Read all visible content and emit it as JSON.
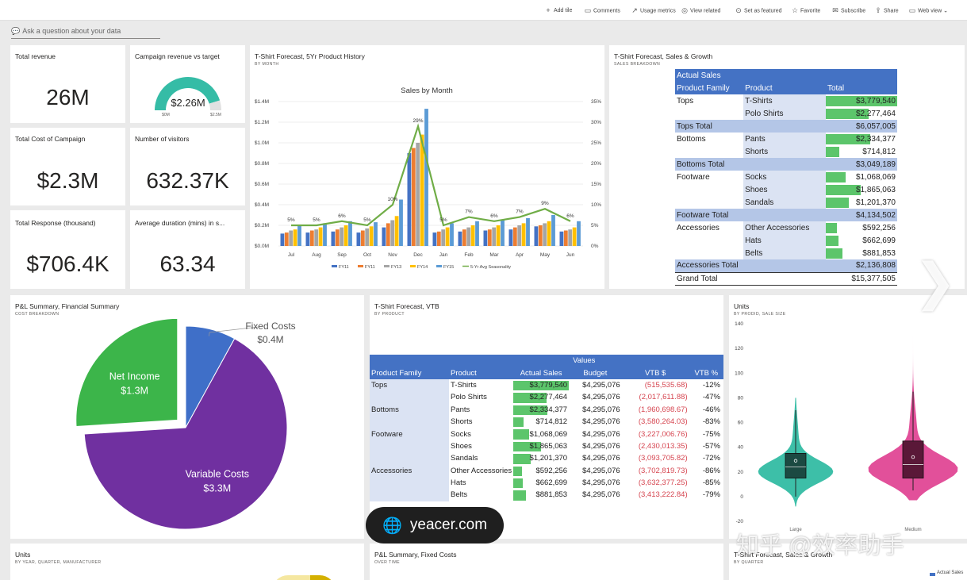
{
  "toolbar": {
    "items": [
      {
        "icon": "plus-icon",
        "glyph": "+",
        "label": "Add tile"
      },
      {
        "icon": "comment-icon",
        "glyph": "▭",
        "label": "Comments"
      },
      {
        "icon": "metrics-icon",
        "glyph": "↗",
        "label": "Usage metrics"
      },
      {
        "icon": "view-related-icon",
        "glyph": "◎",
        "label": "View related"
      },
      {
        "icon": "featured-icon",
        "glyph": "⊙",
        "label": "Set as featured"
      },
      {
        "icon": "star-icon",
        "glyph": "☆",
        "label": "Favorite"
      },
      {
        "icon": "mail-icon",
        "glyph": "✉",
        "label": "Subscribe"
      },
      {
        "icon": "share-icon",
        "glyph": "⇪",
        "label": "Share"
      },
      {
        "icon": "web-view-icon",
        "glyph": "▭",
        "label": "Web view ⌄"
      }
    ]
  },
  "qna": {
    "label": "Ask a question about your data"
  },
  "kpis": {
    "total_revenue": {
      "title": "Total revenue",
      "value": "26M"
    },
    "campaign_gauge": {
      "title": "Campaign revenue vs target",
      "value": "$2.26M",
      "min": "$0M",
      "max": "$2.5M",
      "fraction": 0.904
    },
    "total_cost": {
      "title": "Total Cost of Campaign",
      "value": "$2.3M"
    },
    "visitors": {
      "title": "Number of visitors",
      "value": "632.37K"
    },
    "response": {
      "title": "Total Response (thousand)",
      "value": "$706.4K"
    },
    "duration": {
      "title": "Average duration (mins) in s...",
      "value": "63.34"
    }
  },
  "forecast_tile": {
    "title": "T-Shirt Forecast, 5Yr Product History",
    "subtitle": "BY MONTH"
  },
  "sales_growth_tile": {
    "title": "T-Shirt Forecast, Sales & Growth",
    "subtitle": "SALES BREAKDOWN"
  },
  "pl_tile": {
    "title": "P&L Summary, Financial Summary",
    "subtitle": "COST BREAKDOWN"
  },
  "vtb_tile": {
    "title": "T-Shirt Forecast, VTB",
    "subtitle": "BY PRODUCT"
  },
  "units_tile": {
    "title": "Units",
    "subtitle": "BY PRODID, SALE SIZE"
  },
  "bottom_tiles": {
    "units": {
      "title": "Units",
      "subtitle": "BY YEAR, QUARTER, MANUFACTURER"
    },
    "fixed": {
      "title": "P&L Summary, Fixed Costs",
      "subtitle": "OVER TIME"
    },
    "growth": {
      "title": "T-Shirt Forecast, Sales & Growth",
      "subtitle": "BY QUARTER",
      "legend": "Actual Sales"
    }
  },
  "matrix": {
    "title": "Actual Sales",
    "headers": [
      "Product Family",
      "Product",
      "Total"
    ],
    "max": 3779540,
    "rows": [
      {
        "kind": "item",
        "family": "Tops",
        "product": "T-Shirts",
        "total": "$3,779,540",
        "v": 3779540
      },
      {
        "kind": "item",
        "family": "",
        "product": "Polo Shirts",
        "total": "$2,277,464",
        "v": 2277464
      },
      {
        "kind": "total",
        "family": "Tops Total",
        "total": "$6,057,005"
      },
      {
        "kind": "item",
        "family": "Bottoms",
        "product": "Pants",
        "total": "$2,334,377",
        "v": 2334377
      },
      {
        "kind": "item",
        "family": "",
        "product": "Shorts",
        "total": "$714,812",
        "v": 714812
      },
      {
        "kind": "total",
        "family": "Bottoms Total",
        "total": "$3,049,189"
      },
      {
        "kind": "item",
        "family": "Footware",
        "product": "Socks",
        "total": "$1,068,069",
        "v": 1068069
      },
      {
        "kind": "item",
        "family": "",
        "product": "Shoes",
        "total": "$1,865,063",
        "v": 1865063
      },
      {
        "kind": "item",
        "family": "",
        "product": "Sandals",
        "total": "$1,201,370",
        "v": 1201370
      },
      {
        "kind": "total",
        "family": "Footware Total",
        "total": "$4,134,502"
      },
      {
        "kind": "item",
        "family": "Accessories",
        "product": "Other Accessories",
        "total": "$592,256",
        "v": 592256
      },
      {
        "kind": "item",
        "family": "",
        "product": "Hats",
        "total": "$662,699",
        "v": 662699
      },
      {
        "kind": "item",
        "family": "",
        "product": "Belts",
        "total": "$881,853",
        "v": 881853
      },
      {
        "kind": "total",
        "family": "Accessories Total",
        "total": "$2,136,808"
      },
      {
        "kind": "grand",
        "family": "Grand Total",
        "total": "$15,377,505"
      }
    ]
  },
  "vtb": {
    "values_label": "Values",
    "headers": [
      "Product Family",
      "Product",
      "Actual Sales",
      "Budget",
      "VTB $",
      "VTB %"
    ],
    "max": 3779540,
    "rows": [
      {
        "family": "Tops",
        "product": "T-Shirts",
        "actual": "$3,779,540",
        "v": 3779540,
        "budget": "$4,295,076",
        "vtb": "(515,535.68)",
        "pct": "-12%"
      },
      {
        "family": "",
        "product": "Polo Shirts",
        "actual": "$2,277,464",
        "v": 2277464,
        "budget": "$4,295,076",
        "vtb": "(2,017,611.88)",
        "pct": "-47%"
      },
      {
        "family": "Bottoms",
        "product": "Pants",
        "actual": "$2,334,377",
        "v": 2334377,
        "budget": "$4,295,076",
        "vtb": "(1,960,698.67)",
        "pct": "-46%"
      },
      {
        "family": "",
        "product": "Shorts",
        "actual": "$714,812",
        "v": 714812,
        "budget": "$4,295,076",
        "vtb": "(3,580,264.03)",
        "pct": "-83%"
      },
      {
        "family": "Footware",
        "product": "Socks",
        "actual": "$1,068,069",
        "v": 1068069,
        "budget": "$4,295,076",
        "vtb": "(3,227,006.76)",
        "pct": "-75%"
      },
      {
        "family": "",
        "product": "Shoes",
        "actual": "$1,865,063",
        "v": 1865063,
        "budget": "$4,295,076",
        "vtb": "(2,430,013.35)",
        "pct": "-57%"
      },
      {
        "family": "",
        "product": "Sandals",
        "actual": "$1,201,370",
        "v": 1201370,
        "budget": "$4,295,076",
        "vtb": "(3,093,705.82)",
        "pct": "-72%"
      },
      {
        "family": "Accessories",
        "product": "Other Accessories",
        "actual": "$592,256",
        "v": 592256,
        "budget": "$4,295,076",
        "vtb": "(3,702,819.73)",
        "pct": "-86%"
      },
      {
        "family": "",
        "product": "Hats",
        "actual": "$662,699",
        "v": 662699,
        "budget": "$4,295,076",
        "vtb": "(3,632,377.25)",
        "pct": "-85%"
      },
      {
        "family": "",
        "product": "Belts",
        "actual": "$881,853",
        "v": 881853,
        "budget": "$4,295,076",
        "vtb": "(3,413,222.84)",
        "pct": "-79%"
      }
    ]
  },
  "chart_data": [
    {
      "type": "bar",
      "title": "Sales by Month",
      "categories": [
        "Jul",
        "Aug",
        "Sep",
        "Oct",
        "Nov",
        "Dec",
        "Jan",
        "Feb",
        "Mar",
        "Apr",
        "May",
        "Jun"
      ],
      "y_ticks": [
        "$0.0M",
        "$0.2M",
        "$0.4M",
        "$0.6M",
        "$0.8M",
        "$1.0M",
        "$1.2M",
        "$1.4M"
      ],
      "y2_ticks": [
        "0%",
        "5%",
        "10%",
        "15%",
        "20%",
        "25%",
        "30%",
        "35%"
      ],
      "ylim": [
        0,
        1.4
      ],
      "y2lim": [
        0,
        35
      ],
      "series": [
        {
          "name": "FY11",
          "color": "#4472c4",
          "values": [
            0.12,
            0.13,
            0.14,
            0.13,
            0.18,
            0.9,
            0.13,
            0.14,
            0.15,
            0.16,
            0.19,
            0.14
          ]
        },
        {
          "name": "FY11",
          "color": "#ed7d31",
          "values": [
            0.13,
            0.15,
            0.16,
            0.15,
            0.22,
            0.95,
            0.14,
            0.16,
            0.16,
            0.18,
            0.2,
            0.15
          ]
        },
        {
          "name": "FY13",
          "color": "#a5a5a5",
          "values": [
            0.15,
            0.16,
            0.18,
            0.17,
            0.25,
            1.0,
            0.16,
            0.18,
            0.18,
            0.2,
            0.22,
            0.16
          ]
        },
        {
          "name": "FY14",
          "color": "#ffc000",
          "values": [
            0.16,
            0.18,
            0.2,
            0.19,
            0.29,
            1.08,
            0.18,
            0.2,
            0.2,
            0.22,
            0.24,
            0.18
          ]
        },
        {
          "name": "FY15",
          "color": "#5b9bd5",
          "values": [
            0.2,
            0.22,
            0.24,
            0.23,
            0.45,
            1.33,
            0.22,
            0.24,
            0.25,
            0.27,
            0.3,
            0.24
          ]
        }
      ],
      "line": {
        "name": "5-Yr Avg Seasonality",
        "color": "#70ad47",
        "values": [
          5,
          5,
          6,
          5,
          10,
          29,
          5,
          7,
          6,
          7,
          9,
          6
        ],
        "labels": [
          "5%",
          "5%",
          "6%",
          "5%",
          "10%",
          "29%",
          "5%",
          "7%",
          "6%",
          "7%",
          "9%",
          "6%"
        ]
      }
    },
    {
      "type": "pie",
      "slices": [
        {
          "label": "Fixed Costs",
          "value_label": "$0.4M",
          "value": 0.4,
          "color": "#3f6fc8"
        },
        {
          "label": "Variable Costs",
          "value_label": "$3.3M",
          "value": 3.3,
          "color": "#7030a0"
        },
        {
          "label": "Net Income",
          "value_label": "$1.3M",
          "value": 1.3,
          "color": "#3cb54a"
        }
      ]
    },
    {
      "type": "violin",
      "y_ticks": [
        "-20",
        "0",
        "20",
        "40",
        "60",
        "80",
        "100",
        "120",
        "140"
      ],
      "ylim": [
        -20,
        140
      ],
      "categories": [
        "Large",
        "Medium"
      ],
      "series": [
        {
          "name": "Large",
          "color": "#3dbfa8",
          "box_color": "#1b4a42",
          "min": 0,
          "q1": 15,
          "median": 24,
          "q3": 35,
          "max": 70,
          "mean": 29,
          "top": 80
        },
        {
          "name": "Medium",
          "color": "#e2509a",
          "box_color": "#5a1838",
          "min": 5,
          "q1": 15,
          "median": 26,
          "q3": 45,
          "max": 85,
          "mean": 32,
          "top": 130
        }
      ]
    }
  ],
  "overlay": {
    "watermark": "yeacer.com",
    "zh_watermark": "知乎 @效率助手",
    "next_arrow": "❯"
  }
}
